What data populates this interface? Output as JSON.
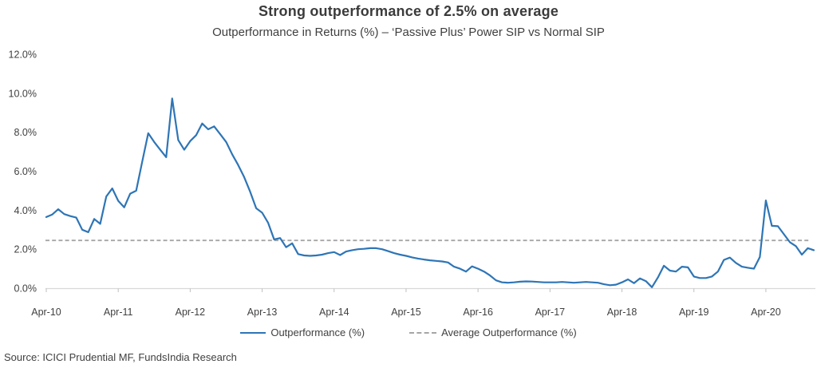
{
  "source_note": "Source: ICICI Prudential MF, FundsIndia Research",
  "colors": {
    "line": "#2E75B6",
    "average_line": "#A6A6A6",
    "axis_line": "#D9D9D9",
    "label_text": "#404040",
    "title_text": "#3b3b3b"
  },
  "chart_data": {
    "type": "line",
    "title": "Strong outperformance of 2.5% on average",
    "subtitle": "Outperformance in Returns (%) – ‘Passive Plus’ Power SIP vs Normal SIP",
    "xlabel": "",
    "ylabel": "",
    "ylim": [
      0,
      12
    ],
    "y_step": 2,
    "grid": false,
    "legend_position": "bottom",
    "y_tick_labels": [
      "0.0%",
      "2.0%",
      "4.0%",
      "6.0%",
      "8.0%",
      "10.0%",
      "12.0%"
    ],
    "x_tick_labels": [
      "Apr-10",
      "Apr-11",
      "Apr-12",
      "Apr-13",
      "Apr-14",
      "Apr-15",
      "Apr-16",
      "Apr-17",
      "Apr-18",
      "Apr-19",
      "Apr-20"
    ],
    "frequency": "monthly",
    "average_value": 2.45,
    "months": [
      "Apr-10",
      "May-10",
      "Jun-10",
      "Jul-10",
      "Aug-10",
      "Sep-10",
      "Oct-10",
      "Nov-10",
      "Dec-10",
      "Jan-11",
      "Feb-11",
      "Mar-11",
      "Apr-11",
      "May-11",
      "Jun-11",
      "Jul-11",
      "Aug-11",
      "Sep-11",
      "Oct-11",
      "Nov-11",
      "Dec-11",
      "Jan-12",
      "Feb-12",
      "Mar-12",
      "Apr-12",
      "May-12",
      "Jun-12",
      "Jul-12",
      "Aug-12",
      "Sep-12",
      "Oct-12",
      "Nov-12",
      "Dec-12",
      "Jan-13",
      "Feb-13",
      "Mar-13",
      "Apr-13",
      "May-13",
      "Jun-13",
      "Jul-13",
      "Aug-13",
      "Sep-13",
      "Oct-13",
      "Nov-13",
      "Dec-13",
      "Jan-14",
      "Feb-14",
      "Mar-14",
      "Apr-14",
      "May-14",
      "Jun-14",
      "Jul-14",
      "Aug-14",
      "Sep-14",
      "Oct-14",
      "Nov-14",
      "Dec-14",
      "Jan-15",
      "Feb-15",
      "Mar-15",
      "Apr-15",
      "May-15",
      "Jun-15",
      "Jul-15",
      "Aug-15",
      "Sep-15",
      "Oct-15",
      "Nov-15",
      "Dec-15",
      "Jan-16",
      "Feb-16",
      "Mar-16",
      "Apr-16",
      "May-16",
      "Jun-16",
      "Jul-16",
      "Aug-16",
      "Sep-16",
      "Oct-16",
      "Nov-16",
      "Dec-16",
      "Jan-17",
      "Feb-17",
      "Mar-17",
      "Apr-17",
      "May-17",
      "Jun-17",
      "Jul-17",
      "Aug-17",
      "Sep-17",
      "Oct-17",
      "Nov-17",
      "Dec-17",
      "Jan-18",
      "Feb-18",
      "Mar-18",
      "Apr-18",
      "May-18",
      "Jun-18",
      "Jul-18",
      "Aug-18",
      "Sep-18",
      "Oct-18",
      "Nov-18",
      "Dec-18",
      "Jan-19",
      "Feb-19",
      "Mar-19",
      "Apr-19",
      "May-19",
      "Jun-19",
      "Jul-19",
      "Aug-19",
      "Sep-19",
      "Oct-19",
      "Nov-19",
      "Dec-19",
      "Jan-20",
      "Feb-20",
      "Mar-20",
      "Apr-20",
      "May-20",
      "Jun-20",
      "Jul-20",
      "Aug-20",
      "Sep-20",
      "Oct-20",
      "Nov-20",
      "Dec-20"
    ],
    "series": [
      {
        "name": "Outperformance (%)",
        "color": "#2E75B6",
        "style": "solid",
        "values": [
          3.65,
          3.78,
          4.05,
          3.8,
          3.7,
          3.62,
          3.0,
          2.87,
          3.55,
          3.3,
          4.7,
          5.12,
          4.48,
          4.15,
          4.85,
          5.0,
          6.5,
          7.95,
          7.5,
          7.1,
          6.72,
          9.73,
          7.6,
          7.1,
          7.55,
          7.85,
          8.45,
          8.15,
          8.3,
          7.9,
          7.5,
          6.87,
          6.32,
          5.7,
          4.95,
          4.1,
          3.87,
          3.35,
          2.5,
          2.57,
          2.1,
          2.3,
          1.75,
          1.68,
          1.66,
          1.68,
          1.72,
          1.8,
          1.85,
          1.7,
          1.88,
          1.95,
          2.0,
          2.02,
          2.05,
          2.05,
          2.0,
          1.9,
          1.8,
          1.72,
          1.66,
          1.58,
          1.52,
          1.47,
          1.43,
          1.4,
          1.37,
          1.32,
          1.1,
          1.0,
          0.85,
          1.12,
          1.0,
          0.85,
          0.65,
          0.4,
          0.3,
          0.28,
          0.3,
          0.33,
          0.35,
          0.34,
          0.32,
          0.3,
          0.3,
          0.3,
          0.32,
          0.3,
          0.28,
          0.3,
          0.32,
          0.3,
          0.28,
          0.2,
          0.15,
          0.18,
          0.3,
          0.45,
          0.26,
          0.5,
          0.36,
          0.05,
          0.55,
          1.15,
          0.9,
          0.85,
          1.1,
          1.07,
          0.6,
          0.52,
          0.52,
          0.6,
          0.85,
          1.45,
          1.57,
          1.3,
          1.1,
          1.05,
          1.0,
          1.6,
          4.5,
          3.2,
          3.18,
          2.77,
          2.36,
          2.16,
          1.72,
          2.05,
          1.95
        ]
      },
      {
        "name": "Average Outperformance (%)",
        "color": "#A6A6A6",
        "style": "dashed",
        "constant_value": 2.45
      }
    ]
  }
}
